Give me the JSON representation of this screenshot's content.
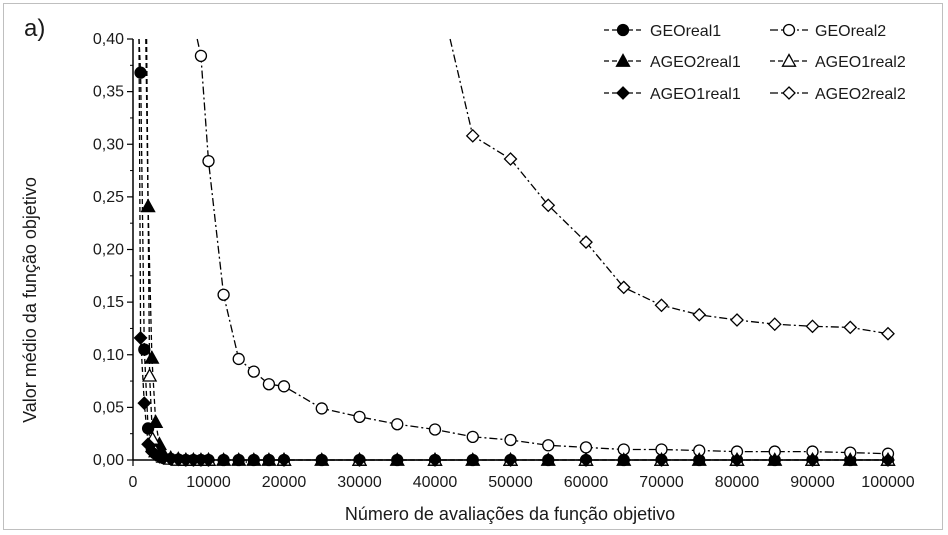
{
  "chart_data": {
    "type": "line",
    "panel_label": "a)",
    "xlabel": "Número de avaliações da função objetivo",
    "ylabel": "Valor médio da função objetivo",
    "xlim": [
      0,
      100000
    ],
    "ylim": [
      0,
      0.4
    ],
    "xticks": [
      0,
      10000,
      20000,
      30000,
      40000,
      50000,
      60000,
      70000,
      80000,
      90000,
      100000
    ],
    "xtick_labels": [
      "0",
      "10000",
      "20000",
      "30000",
      "40000",
      "50000",
      "60000",
      "70000",
      "80000",
      "90000",
      "100000"
    ],
    "yticks": [
      0,
      0.05,
      0.1,
      0.15,
      0.2,
      0.25,
      0.3,
      0.35,
      0.4
    ],
    "ytick_labels": [
      "0,00",
      "0,05",
      "0,10",
      "0,15",
      "0,20",
      "0,25",
      "0,30",
      "0,35",
      "0,40"
    ],
    "grid": false,
    "legend_position": "top-right",
    "series": [
      {
        "name": "GEOreal1",
        "marker": "circle",
        "filled": true,
        "dash": "dash",
        "points": [
          [
            800,
            0.4
          ],
          [
            1000,
            0.368
          ],
          [
            1500,
            0.105
          ],
          [
            2000,
            0.03
          ],
          [
            2500,
            0.01
          ],
          [
            3000,
            0.006
          ],
          [
            3500,
            0.004
          ],
          [
            4000,
            0.002
          ],
          [
            5000,
            0.001
          ],
          [
            6000,
            0.0005
          ],
          [
            7000,
            0
          ],
          [
            8000,
            0
          ],
          [
            9000,
            0
          ],
          [
            10000,
            0
          ],
          [
            12000,
            0
          ],
          [
            14000,
            0
          ],
          [
            16000,
            0
          ],
          [
            18000,
            0
          ],
          [
            20000,
            0
          ],
          [
            25000,
            0
          ],
          [
            30000,
            0
          ],
          [
            35000,
            0
          ],
          [
            40000,
            0
          ],
          [
            45000,
            0
          ],
          [
            50000,
            0
          ],
          [
            55000,
            0
          ],
          [
            60000,
            0
          ],
          [
            65000,
            0
          ],
          [
            70000,
            0
          ],
          [
            75000,
            0
          ],
          [
            80000,
            0
          ],
          [
            85000,
            0
          ],
          [
            90000,
            0
          ],
          [
            95000,
            0
          ],
          [
            100000,
            0
          ]
        ]
      },
      {
        "name": "GEOreal2",
        "marker": "circle",
        "filled": false,
        "dash": "dashdot",
        "points": [
          [
            8500,
            0.4
          ],
          [
            9000,
            0.384
          ],
          [
            10000,
            0.284
          ],
          [
            12000,
            0.157
          ],
          [
            14000,
            0.096
          ],
          [
            16000,
            0.084
          ],
          [
            18000,
            0.072
          ],
          [
            20000,
            0.07
          ],
          [
            25000,
            0.049
          ],
          [
            30000,
            0.041
          ],
          [
            35000,
            0.034
          ],
          [
            40000,
            0.029
          ],
          [
            45000,
            0.022
          ],
          [
            50000,
            0.019
          ],
          [
            55000,
            0.014
          ],
          [
            60000,
            0.012
          ],
          [
            65000,
            0.01
          ],
          [
            70000,
            0.01
          ],
          [
            75000,
            0.009
          ],
          [
            80000,
            0.008
          ],
          [
            85000,
            0.008
          ],
          [
            90000,
            0.008
          ],
          [
            95000,
            0.007
          ],
          [
            100000,
            0.006
          ]
        ]
      },
      {
        "name": "AGEO2real1",
        "marker": "triangle",
        "filled": true,
        "dash": "dash",
        "points": [
          [
            1700,
            0.4
          ],
          [
            2000,
            0.241
          ],
          [
            2500,
            0.097
          ],
          [
            3000,
            0.036
          ],
          [
            3500,
            0.015
          ],
          [
            4000,
            0.006
          ],
          [
            5000,
            0.002
          ],
          [
            6000,
            0.001
          ],
          [
            7000,
            0
          ],
          [
            8000,
            0
          ],
          [
            9000,
            0
          ],
          [
            10000,
            0
          ],
          [
            12000,
            0
          ],
          [
            14000,
            0
          ],
          [
            16000,
            0
          ],
          [
            18000,
            0
          ],
          [
            20000,
            0
          ],
          [
            25000,
            0
          ],
          [
            30000,
            0
          ],
          [
            35000,
            0
          ],
          [
            40000,
            0
          ],
          [
            45000,
            0
          ],
          [
            50000,
            0
          ],
          [
            55000,
            0
          ],
          [
            60000,
            0
          ],
          [
            65000,
            0
          ],
          [
            70000,
            0
          ],
          [
            75000,
            0
          ],
          [
            80000,
            0
          ],
          [
            85000,
            0
          ],
          [
            90000,
            0
          ],
          [
            95000,
            0
          ],
          [
            100000,
            0
          ]
        ]
      },
      {
        "name": "AGEO1real2",
        "marker": "triangle",
        "filled": false,
        "dash": "dash",
        "points": [
          [
            1800,
            0.4
          ],
          [
            2200,
            0.08
          ],
          [
            2600,
            0.02
          ],
          [
            3000,
            0.008
          ],
          [
            4000,
            0.003
          ],
          [
            5000,
            0.001
          ],
          [
            6000,
            0
          ],
          [
            7000,
            0
          ],
          [
            8000,
            0
          ],
          [
            10000,
            0
          ],
          [
            20000,
            0
          ],
          [
            30000,
            0
          ],
          [
            40000,
            0
          ],
          [
            50000,
            0
          ],
          [
            60000,
            0
          ],
          [
            70000,
            0
          ],
          [
            80000,
            0
          ],
          [
            90000,
            0
          ],
          [
            100000,
            0
          ]
        ]
      },
      {
        "name": "AGEO1real1",
        "marker": "diamond",
        "filled": true,
        "dash": "dash",
        "points": [
          [
            800,
            0.4
          ],
          [
            1000,
            0.116
          ],
          [
            1500,
            0.054
          ],
          [
            2000,
            0.015
          ],
          [
            2500,
            0.008
          ],
          [
            3000,
            0.005
          ],
          [
            3500,
            0.003
          ],
          [
            4000,
            0.002
          ],
          [
            5000,
            0.001
          ],
          [
            6000,
            0.0005
          ],
          [
            7000,
            0
          ],
          [
            8000,
            0
          ],
          [
            9000,
            0
          ],
          [
            10000,
            0
          ],
          [
            20000,
            0
          ],
          [
            30000,
            0
          ],
          [
            40000,
            0
          ],
          [
            50000,
            0
          ],
          [
            60000,
            0
          ],
          [
            70000,
            0
          ],
          [
            80000,
            0
          ],
          [
            90000,
            0
          ],
          [
            100000,
            0
          ]
        ]
      },
      {
        "name": "AGEO2real2",
        "marker": "diamond",
        "filled": false,
        "dash": "dashdot",
        "points": [
          [
            42000,
            0.4
          ],
          [
            45000,
            0.308
          ],
          [
            50000,
            0.286
          ],
          [
            55000,
            0.242
          ],
          [
            60000,
            0.207
          ],
          [
            65000,
            0.164
          ],
          [
            70000,
            0.147
          ],
          [
            75000,
            0.138
          ],
          [
            80000,
            0.133
          ],
          [
            85000,
            0.129
          ],
          [
            90000,
            0.127
          ],
          [
            95000,
            0.126
          ],
          [
            100000,
            0.12
          ]
        ]
      }
    ]
  }
}
